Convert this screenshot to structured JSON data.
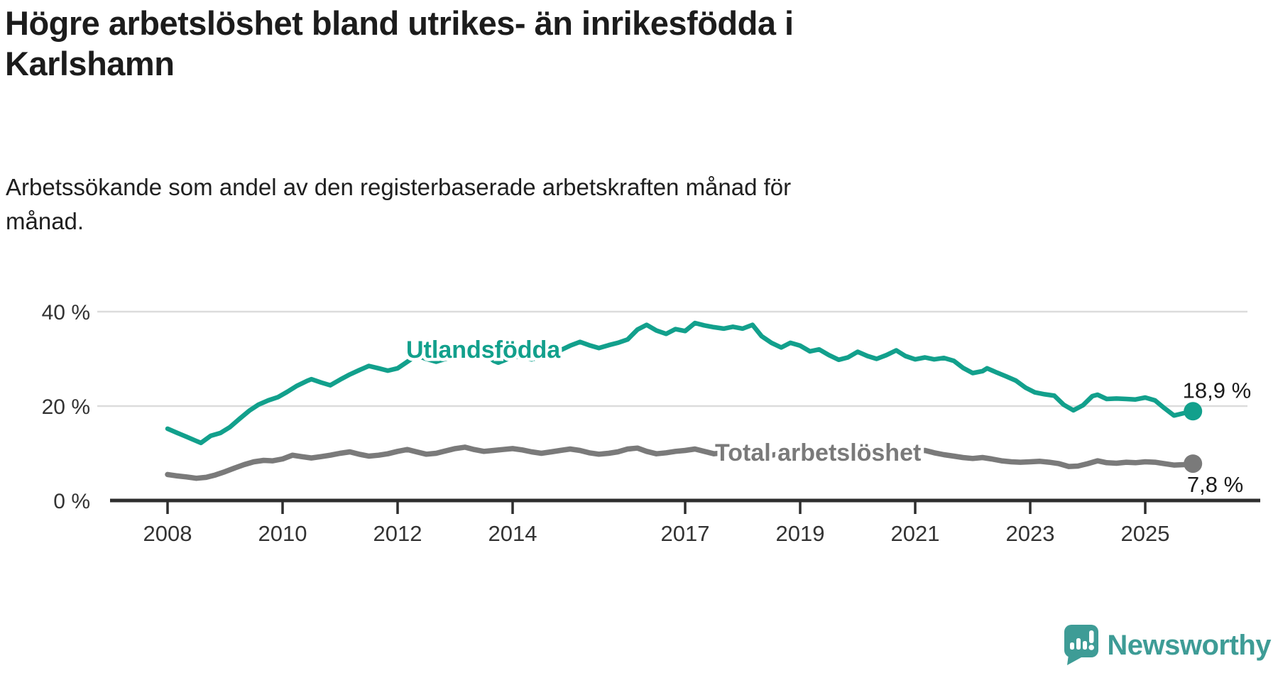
{
  "footer": {
    "brand": "Newsworthy"
  },
  "colors": {
    "foreign_born_line": "#12A08C",
    "total_line": "#7A7A7A",
    "logo_teal": "#3E9C96",
    "grid": "#DCDCDC",
    "axis": "#2E2E2E",
    "text_dark": "#1c1c1c"
  },
  "chart_data": {
    "type": "line",
    "title": [
      "Högre arbetslöshet bland utrikes- än inrikesfödda i",
      "Karlshamn"
    ],
    "subtitle": [
      "Arbetssökande som andel av den registerbaserade arbetskraften månad för",
      "månad."
    ],
    "grid": "horizontal-only",
    "legend": "inline-labels",
    "x_axis": {
      "ticks": [
        2008,
        2010,
        2012,
        2014,
        2017,
        2019,
        2021,
        2023,
        2025
      ],
      "labels": [
        "2008",
        "2010",
        "2012",
        "2014",
        "2017",
        "2019",
        "2021",
        "2023",
        "2025"
      ],
      "range": [
        2007.9,
        2026.2
      ]
    },
    "y_axis": {
      "ticks": [
        0,
        20,
        40
      ],
      "labels": [
        "0 %",
        "20 %",
        "40 %"
      ],
      "range": [
        0,
        42
      ],
      "unit": "%"
    },
    "series": [
      {
        "name": "Utlandsfödda",
        "color": "#12A08C",
        "end_value": 18.9,
        "end_label": "18,9 %",
        "points": [
          [
            2008.0,
            15.2
          ],
          [
            2008.17,
            14.3
          ],
          [
            2008.33,
            13.5
          ],
          [
            2008.5,
            12.6
          ],
          [
            2008.58,
            12.2
          ],
          [
            2008.75,
            13.7
          ],
          [
            2008.92,
            14.3
          ],
          [
            2009.08,
            15.5
          ],
          [
            2009.25,
            17.3
          ],
          [
            2009.42,
            19.0
          ],
          [
            2009.58,
            20.3
          ],
          [
            2009.75,
            21.2
          ],
          [
            2009.92,
            21.9
          ],
          [
            2010.08,
            23.0
          ],
          [
            2010.25,
            24.3
          ],
          [
            2010.42,
            25.3
          ],
          [
            2010.5,
            25.7
          ],
          [
            2010.67,
            25.0
          ],
          [
            2010.83,
            24.4
          ],
          [
            2011.0,
            25.6
          ],
          [
            2011.17,
            26.7
          ],
          [
            2011.33,
            27.6
          ],
          [
            2011.5,
            28.5
          ],
          [
            2011.67,
            28.0
          ],
          [
            2011.83,
            27.5
          ],
          [
            2012.0,
            28.0
          ],
          [
            2012.17,
            29.4
          ],
          [
            2012.33,
            30.7
          ],
          [
            2012.5,
            30.0
          ],
          [
            2012.67,
            29.4
          ],
          [
            2012.83,
            30.0
          ],
          [
            2013.0,
            30.5
          ],
          [
            2013.17,
            31.4
          ],
          [
            2013.33,
            31.9
          ],
          [
            2013.5,
            31.2
          ],
          [
            2013.67,
            29.6
          ],
          [
            2013.75,
            29.2
          ],
          [
            2013.92,
            30.0
          ],
          [
            2014.08,
            30.5
          ],
          [
            2014.25,
            30.1
          ],
          [
            2014.33,
            29.9
          ],
          [
            2014.5,
            30.5
          ],
          [
            2014.67,
            31.2
          ],
          [
            2014.83,
            31.8
          ],
          [
            2015.0,
            32.8
          ],
          [
            2015.17,
            33.6
          ],
          [
            2015.33,
            32.9
          ],
          [
            2015.5,
            32.3
          ],
          [
            2015.67,
            32.9
          ],
          [
            2015.83,
            33.4
          ],
          [
            2016.0,
            34.1
          ],
          [
            2016.17,
            36.2
          ],
          [
            2016.33,
            37.2
          ],
          [
            2016.5,
            36.0
          ],
          [
            2016.67,
            35.3
          ],
          [
            2016.83,
            36.3
          ],
          [
            2017.0,
            35.9
          ],
          [
            2017.17,
            37.6
          ],
          [
            2017.33,
            37.1
          ],
          [
            2017.5,
            36.7
          ],
          [
            2017.67,
            36.4
          ],
          [
            2017.83,
            36.8
          ],
          [
            2018.0,
            36.4
          ],
          [
            2018.17,
            37.2
          ],
          [
            2018.33,
            34.8
          ],
          [
            2018.5,
            33.4
          ],
          [
            2018.67,
            32.4
          ],
          [
            2018.83,
            33.4
          ],
          [
            2019.0,
            32.8
          ],
          [
            2019.17,
            31.6
          ],
          [
            2019.33,
            32.0
          ],
          [
            2019.5,
            30.8
          ],
          [
            2019.67,
            29.8
          ],
          [
            2019.83,
            30.3
          ],
          [
            2020.0,
            31.5
          ],
          [
            2020.17,
            30.6
          ],
          [
            2020.33,
            30.0
          ],
          [
            2020.5,
            30.8
          ],
          [
            2020.67,
            31.8
          ],
          [
            2020.83,
            30.6
          ],
          [
            2021.0,
            29.9
          ],
          [
            2021.17,
            30.3
          ],
          [
            2021.33,
            29.9
          ],
          [
            2021.5,
            30.2
          ],
          [
            2021.67,
            29.6
          ],
          [
            2021.83,
            28.1
          ],
          [
            2022.0,
            27.0
          ],
          [
            2022.17,
            27.4
          ],
          [
            2022.25,
            28.0
          ],
          [
            2022.42,
            27.1
          ],
          [
            2022.58,
            26.3
          ],
          [
            2022.75,
            25.4
          ],
          [
            2022.92,
            23.9
          ],
          [
            2023.08,
            22.9
          ],
          [
            2023.25,
            22.5
          ],
          [
            2023.42,
            22.2
          ],
          [
            2023.58,
            20.3
          ],
          [
            2023.75,
            19.1
          ],
          [
            2023.92,
            20.2
          ],
          [
            2024.08,
            22.1
          ],
          [
            2024.17,
            22.4
          ],
          [
            2024.33,
            21.5
          ],
          [
            2024.5,
            21.6
          ],
          [
            2024.67,
            21.5
          ],
          [
            2024.83,
            21.4
          ],
          [
            2025.0,
            21.8
          ],
          [
            2025.17,
            21.2
          ],
          [
            2025.33,
            19.6
          ],
          [
            2025.5,
            18.0
          ],
          [
            2025.67,
            18.5
          ],
          [
            2025.83,
            18.9
          ]
        ]
      },
      {
        "name": "Total arbetslöshet",
        "color": "#7A7A7A",
        "end_value": 7.8,
        "end_label": "7,8 %",
        "points": [
          [
            2008.0,
            5.5
          ],
          [
            2008.17,
            5.2
          ],
          [
            2008.33,
            5.0
          ],
          [
            2008.5,
            4.7
          ],
          [
            2008.67,
            4.9
          ],
          [
            2008.83,
            5.4
          ],
          [
            2009.0,
            6.1
          ],
          [
            2009.17,
            6.9
          ],
          [
            2009.33,
            7.6
          ],
          [
            2009.5,
            8.2
          ],
          [
            2009.67,
            8.5
          ],
          [
            2009.83,
            8.4
          ],
          [
            2010.0,
            8.8
          ],
          [
            2010.17,
            9.6
          ],
          [
            2010.33,
            9.3
          ],
          [
            2010.5,
            9.0
          ],
          [
            2010.67,
            9.3
          ],
          [
            2010.83,
            9.6
          ],
          [
            2011.0,
            10.0
          ],
          [
            2011.17,
            10.3
          ],
          [
            2011.33,
            9.8
          ],
          [
            2011.5,
            9.4
          ],
          [
            2011.67,
            9.6
          ],
          [
            2011.83,
            9.9
          ],
          [
            2012.0,
            10.4
          ],
          [
            2012.17,
            10.8
          ],
          [
            2012.33,
            10.3
          ],
          [
            2012.5,
            9.8
          ],
          [
            2012.67,
            10.0
          ],
          [
            2012.83,
            10.5
          ],
          [
            2013.0,
            11.0
          ],
          [
            2013.17,
            11.3
          ],
          [
            2013.33,
            10.8
          ],
          [
            2013.5,
            10.4
          ],
          [
            2013.67,
            10.6
          ],
          [
            2013.83,
            10.8
          ],
          [
            2014.0,
            11.0
          ],
          [
            2014.17,
            10.7
          ],
          [
            2014.33,
            10.3
          ],
          [
            2014.5,
            10.0
          ],
          [
            2014.67,
            10.3
          ],
          [
            2014.83,
            10.6
          ],
          [
            2015.0,
            10.9
          ],
          [
            2015.17,
            10.6
          ],
          [
            2015.33,
            10.1
          ],
          [
            2015.5,
            9.8
          ],
          [
            2015.67,
            10.0
          ],
          [
            2015.83,
            10.3
          ],
          [
            2016.0,
            10.9
          ],
          [
            2016.17,
            11.1
          ],
          [
            2016.33,
            10.4
          ],
          [
            2016.5,
            9.9
          ],
          [
            2016.67,
            10.1
          ],
          [
            2016.83,
            10.4
          ],
          [
            2017.0,
            10.6
          ],
          [
            2017.17,
            10.9
          ],
          [
            2017.33,
            10.4
          ],
          [
            2017.5,
            9.9
          ],
          [
            2017.67,
            10.1
          ],
          [
            2017.83,
            10.4
          ],
          [
            2018.0,
            10.6
          ],
          [
            2018.17,
            10.3
          ],
          [
            2018.33,
            9.9
          ],
          [
            2018.5,
            9.6
          ],
          [
            2018.67,
            9.9
          ],
          [
            2018.83,
            10.1
          ],
          [
            2019.0,
            10.4
          ],
          [
            2019.17,
            10.6
          ],
          [
            2019.33,
            10.1
          ],
          [
            2019.5,
            9.8
          ],
          [
            2019.67,
            10.0
          ],
          [
            2019.83,
            10.3
          ],
          [
            2020.0,
            10.4
          ],
          [
            2020.17,
            10.6
          ],
          [
            2020.33,
            10.9
          ],
          [
            2020.5,
            10.6
          ],
          [
            2020.67,
            10.4
          ],
          [
            2020.83,
            10.1
          ],
          [
            2021.0,
            10.4
          ],
          [
            2021.17,
            10.6
          ],
          [
            2021.33,
            10.1
          ],
          [
            2021.5,
            9.7
          ],
          [
            2021.67,
            9.4
          ],
          [
            2021.83,
            9.1
          ],
          [
            2022.0,
            8.9
          ],
          [
            2022.17,
            9.1
          ],
          [
            2022.33,
            8.8
          ],
          [
            2022.5,
            8.4
          ],
          [
            2022.67,
            8.2
          ],
          [
            2022.83,
            8.1
          ],
          [
            2023.0,
            8.2
          ],
          [
            2023.17,
            8.3
          ],
          [
            2023.33,
            8.1
          ],
          [
            2023.5,
            7.8
          ],
          [
            2023.67,
            7.2
          ],
          [
            2023.83,
            7.3
          ],
          [
            2024.0,
            7.8
          ],
          [
            2024.17,
            8.4
          ],
          [
            2024.33,
            8.0
          ],
          [
            2024.5,
            7.9
          ],
          [
            2024.67,
            8.1
          ],
          [
            2024.83,
            8.0
          ],
          [
            2025.0,
            8.2
          ],
          [
            2025.17,
            8.1
          ],
          [
            2025.33,
            7.8
          ],
          [
            2025.5,
            7.5
          ],
          [
            2025.67,
            7.6
          ],
          [
            2025.83,
            7.8
          ]
        ]
      }
    ]
  }
}
